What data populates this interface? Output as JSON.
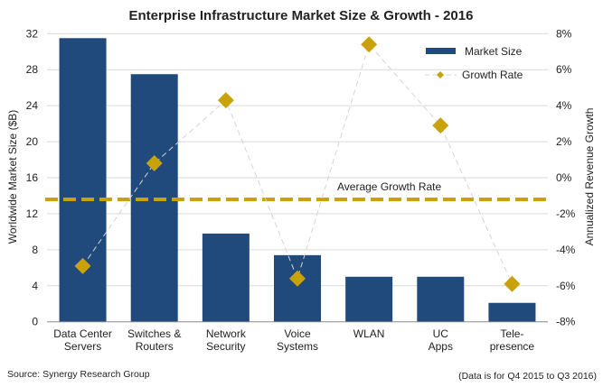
{
  "chart_data": {
    "type": "bar",
    "title": "Enterprise Infrastructure Market Size & Growth - 2016",
    "categories": [
      [
        "Data Center",
        "Servers"
      ],
      [
        "Switches &",
        "Routers"
      ],
      [
        "Network",
        "Security"
      ],
      [
        "Voice",
        "Systems"
      ],
      [
        "WLAN"
      ],
      [
        "UC",
        "Apps"
      ],
      [
        "Tele-",
        "presence"
      ]
    ],
    "series": [
      {
        "name": "Market Size",
        "type": "bar",
        "axis": "left",
        "color": "#214a7c",
        "values": [
          31.5,
          27.5,
          9.8,
          7.4,
          5.0,
          5.0,
          2.1
        ]
      },
      {
        "name": "Growth Rate",
        "type": "line",
        "axis": "right",
        "color": "#c9a20a",
        "values": [
          -4.9,
          0.8,
          4.3,
          -5.6,
          7.4,
          2.9,
          -5.9
        ]
      }
    ],
    "average_line": {
      "label": "Average Growth Rate",
      "value": -1.2
    },
    "ylabel": "Worldwide Market Size ($B)",
    "ylabel_right": "Annualized Revenue  Growth",
    "ylim": [
      0,
      32
    ],
    "ylim_right": [
      -8,
      8
    ],
    "yticks": [
      "0",
      "4",
      "8",
      "12",
      "16",
      "20",
      "24",
      "28",
      "32"
    ],
    "yticks_right": [
      "-8%",
      "-6%",
      "-4%",
      "-2%",
      "0%",
      "2%",
      "4%",
      "6%",
      "8%"
    ],
    "grid": true,
    "legend": "top-right",
    "source": "Source: Synergy Research Group",
    "note": "(Data is for Q4 2015 to Q3 2016)"
  }
}
